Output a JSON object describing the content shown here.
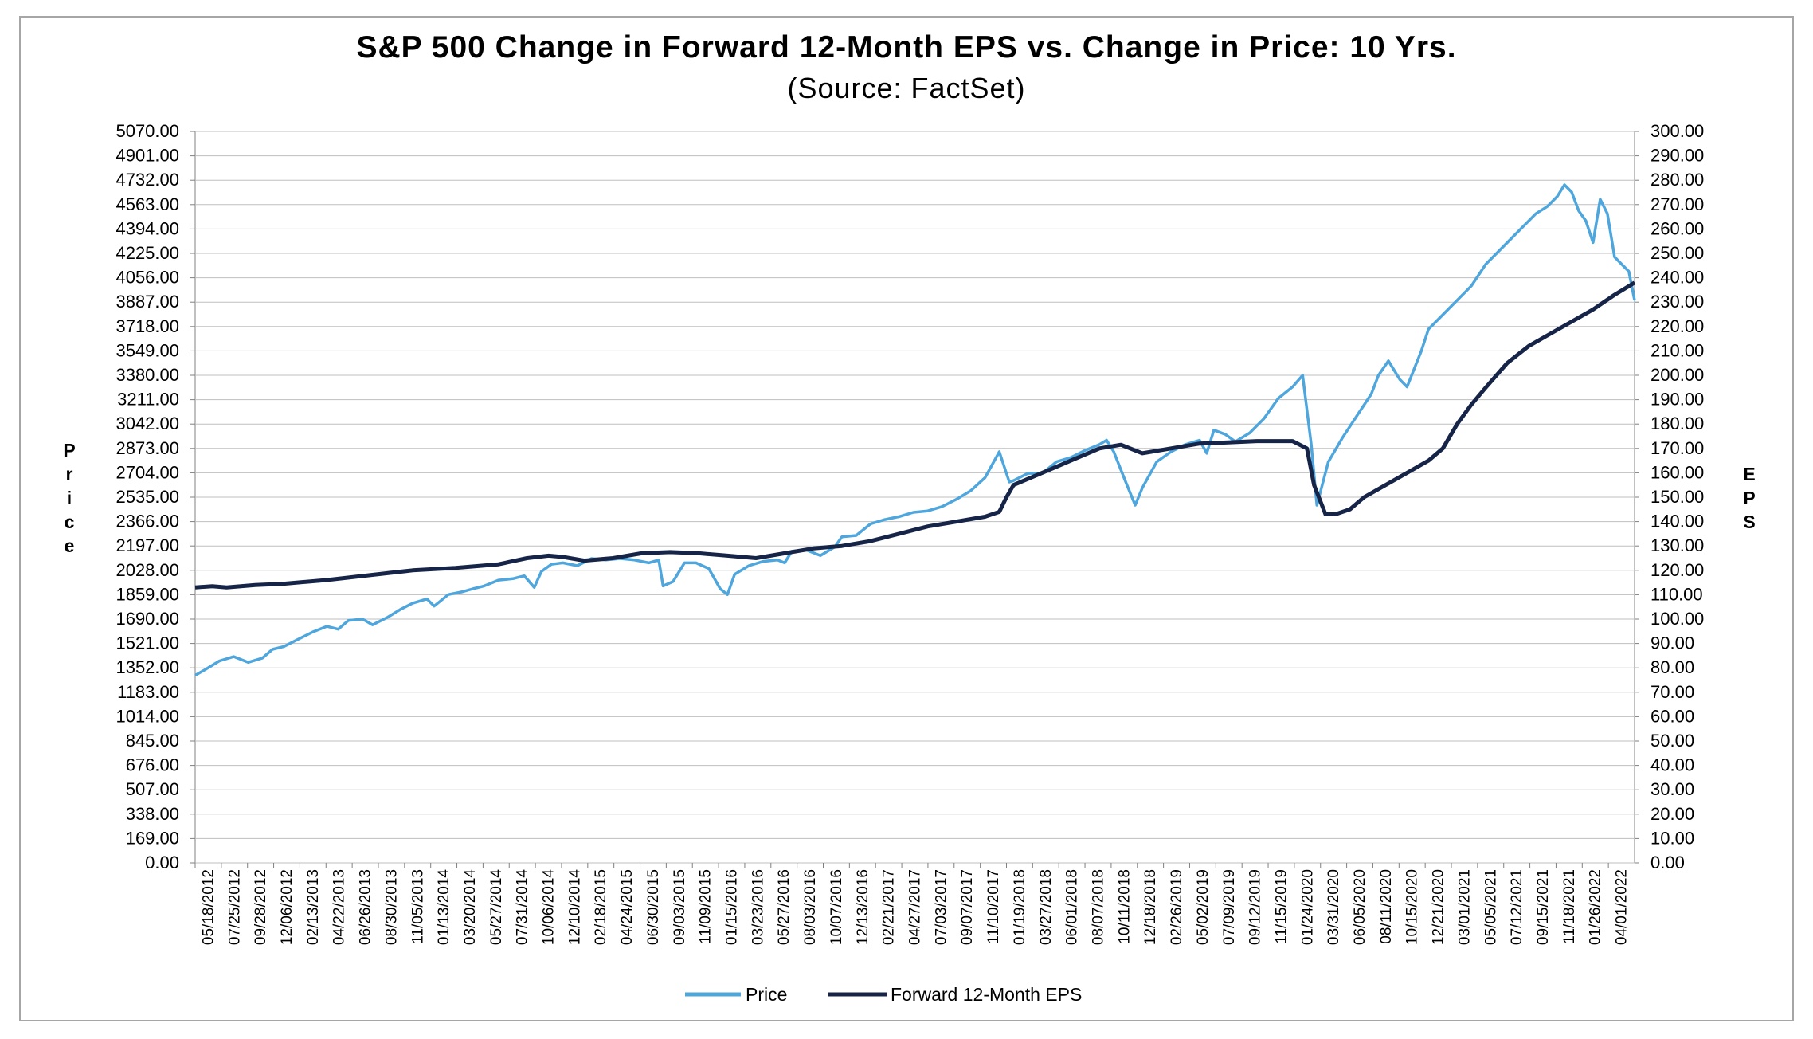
{
  "chart_data": {
    "type": "line",
    "title": "S&P 500 Change in Forward 12-Month EPS vs. Change in Price: 10 Yrs.",
    "subtitle": "(Source: FactSet)",
    "ylabel_left": "Price",
    "ylabel_right": "EPS",
    "y_left_ticks": [
      "0.00",
      "169.00",
      "338.00",
      "507.00",
      "676.00",
      "845.00",
      "1014.00",
      "1183.00",
      "1352.00",
      "1521.00",
      "1690.00",
      "1859.00",
      "2028.00",
      "2197.00",
      "2366.00",
      "2535.00",
      "2704.00",
      "2873.00",
      "3042.00",
      "3211.00",
      "3380.00",
      "3549.00",
      "3718.00",
      "3887.00",
      "4056.00",
      "4225.00",
      "4394.00",
      "4563.00",
      "4732.00",
      "4901.00",
      "5070.00"
    ],
    "y_right_ticks": [
      "0.00",
      "10.00",
      "20.00",
      "30.00",
      "40.00",
      "50.00",
      "60.00",
      "70.00",
      "80.00",
      "90.00",
      "100.00",
      "110.00",
      "120.00",
      "130.00",
      "140.00",
      "150.00",
      "160.00",
      "170.00",
      "180.00",
      "190.00",
      "200.00",
      "210.00",
      "220.00",
      "230.00",
      "240.00",
      "250.00",
      "260.00",
      "270.00",
      "280.00",
      "290.00",
      "300.00"
    ],
    "y_left_lim": [
      0,
      5070
    ],
    "y_right_lim": [
      0,
      300
    ],
    "x_lim": [
      2012.38,
      2022.44
    ],
    "x_tick_labels": [
      "05/18/2012",
      "07/25/2012",
      "09/28/2012",
      "12/06/2012",
      "02/13/2013",
      "04/22/2013",
      "06/26/2013",
      "08/30/2013",
      "11/05/2013",
      "01/13/2014",
      "03/20/2014",
      "05/27/2014",
      "07/31/2014",
      "10/06/2014",
      "12/10/2014",
      "02/18/2015",
      "04/24/2015",
      "06/30/2015",
      "09/03/2015",
      "11/09/2015",
      "01/15/2016",
      "03/23/2016",
      "05/27/2016",
      "08/03/2016",
      "10/07/2016",
      "12/13/2016",
      "02/21/2017",
      "04/27/2017",
      "07/03/2017",
      "09/07/2017",
      "11/10/2017",
      "01/19/2018",
      "03/27/2018",
      "06/01/2018",
      "08/07/2018",
      "10/11/2018",
      "12/18/2018",
      "02/26/2019",
      "05/02/2019",
      "07/09/2019",
      "09/12/2019",
      "11/15/2019",
      "01/24/2020",
      "03/31/2020",
      "06/05/2020",
      "08/11/2020",
      "10/15/2020",
      "12/21/2020",
      "03/01/2021",
      "05/05/2021",
      "07/12/2021",
      "09/15/2021",
      "11/18/2021",
      "01/26/2022",
      "04/01/2022"
    ],
    "grid": true,
    "legend_position": "bottom",
    "series": [
      {
        "name": "Price",
        "axis": "left",
        "color": "#4ea6dc",
        "x": [
          2012.38,
          2012.45,
          2012.55,
          2012.65,
          2012.75,
          2012.85,
          2012.92,
          2013.0,
          2013.1,
          2013.2,
          2013.3,
          2013.38,
          2013.45,
          2013.55,
          2013.62,
          2013.72,
          2013.82,
          2013.9,
          2014.0,
          2014.05,
          2014.15,
          2014.25,
          2014.32,
          2014.4,
          2014.5,
          2014.6,
          2014.68,
          2014.75,
          2014.8,
          2014.87,
          2014.95,
          2015.05,
          2015.15,
          2015.25,
          2015.35,
          2015.45,
          2015.55,
          2015.62,
          2015.65,
          2015.72,
          2015.8,
          2015.88,
          2015.97,
          2016.05,
          2016.1,
          2016.15,
          2016.25,
          2016.35,
          2016.45,
          2016.5,
          2016.55,
          2016.65,
          2016.75,
          2016.85,
          2016.9,
          2017.0,
          2017.1,
          2017.2,
          2017.3,
          2017.4,
          2017.5,
          2017.6,
          2017.7,
          2017.8,
          2017.9,
          2018.0,
          2018.07,
          2018.1,
          2018.2,
          2018.3,
          2018.4,
          2018.5,
          2018.6,
          2018.7,
          2018.75,
          2018.8,
          2018.88,
          2018.95,
          2019.0,
          2019.1,
          2019.2,
          2019.3,
          2019.4,
          2019.45,
          2019.5,
          2019.58,
          2019.65,
          2019.75,
          2019.85,
          2019.95,
          2020.05,
          2020.12,
          2020.18,
          2020.22,
          2020.3,
          2020.4,
          2020.5,
          2020.6,
          2020.65,
          2020.72,
          2020.8,
          2020.85,
          2020.95,
          2021.0,
          2021.1,
          2021.2,
          2021.3,
          2021.4,
          2021.5,
          2021.6,
          2021.65,
          2021.75,
          2021.83,
          2021.9,
          2021.95,
          2022.0,
          2022.05,
          2022.1,
          2022.15,
          2022.2,
          2022.25,
          2022.3,
          2022.35,
          2022.4,
          2022.44
        ],
        "values": [
          1300,
          1340,
          1400,
          1430,
          1390,
          1420,
          1480,
          1500,
          1550,
          1600,
          1640,
          1620,
          1680,
          1690,
          1650,
          1700,
          1760,
          1800,
          1830,
          1780,
          1860,
          1880,
          1900,
          1920,
          1960,
          1970,
          1990,
          1910,
          2020,
          2070,
          2080,
          2060,
          2110,
          2100,
          2110,
          2100,
          2080,
          2100,
          1920,
          1950,
          2080,
          2080,
          2040,
          1900,
          1860,
          2000,
          2060,
          2090,
          2100,
          2080,
          2160,
          2170,
          2130,
          2190,
          2260,
          2270,
          2350,
          2380,
          2400,
          2430,
          2440,
          2470,
          2520,
          2580,
          2670,
          2850,
          2640,
          2650,
          2700,
          2700,
          2780,
          2810,
          2860,
          2900,
          2930,
          2850,
          2650,
          2480,
          2600,
          2780,
          2850,
          2900,
          2930,
          2840,
          3000,
          2970,
          2920,
          2980,
          3080,
          3220,
          3300,
          3380,
          2900,
          2480,
          2780,
          2950,
          3100,
          3250,
          3380,
          3480,
          3350,
          3300,
          3550,
          3700,
          3800,
          3900,
          4000,
          4150,
          4250,
          4350,
          4400,
          4500,
          4550,
          4620,
          4700,
          4650,
          4520,
          4450,
          4300,
          4600,
          4500,
          4200,
          4150,
          4100,
          3900
        ]
      },
      {
        "name": "Forward 12-Month EPS",
        "axis": "right",
        "color": "#162448",
        "x": [
          2012.38,
          2012.5,
          2012.6,
          2012.8,
          2013.0,
          2013.3,
          2013.6,
          2013.9,
          2014.2,
          2014.5,
          2014.7,
          2014.85,
          2014.95,
          2015.1,
          2015.3,
          2015.5,
          2015.7,
          2015.9,
          2016.1,
          2016.3,
          2016.5,
          2016.7,
          2016.9,
          2017.1,
          2017.3,
          2017.5,
          2017.7,
          2017.9,
          2018.0,
          2018.05,
          2018.1,
          2018.3,
          2018.5,
          2018.7,
          2018.85,
          2019.0,
          2019.2,
          2019.4,
          2019.6,
          2019.8,
          2019.95,
          2020.05,
          2020.15,
          2020.2,
          2020.28,
          2020.35,
          2020.45,
          2020.55,
          2020.7,
          2020.85,
          2021.0,
          2021.1,
          2021.2,
          2021.3,
          2021.4,
          2021.55,
          2021.7,
          2021.85,
          2022.0,
          2022.15,
          2022.3,
          2022.44
        ],
        "values": [
          113,
          113.5,
          113,
          114,
          114.5,
          116,
          118,
          120,
          121,
          122.5,
          125,
          126,
          125.5,
          124,
          125,
          127,
          127.5,
          127,
          126,
          125,
          127,
          129,
          130,
          132,
          135,
          138,
          140,
          142,
          144,
          150,
          155,
          160,
          165,
          170,
          171.5,
          168,
          170,
          172,
          172.5,
          173,
          173,
          173,
          170,
          155,
          143,
          143,
          145,
          150,
          155,
          160,
          165,
          170,
          180,
          188,
          195,
          205,
          212,
          217,
          222,
          227,
          233,
          238
        ]
      }
    ]
  }
}
